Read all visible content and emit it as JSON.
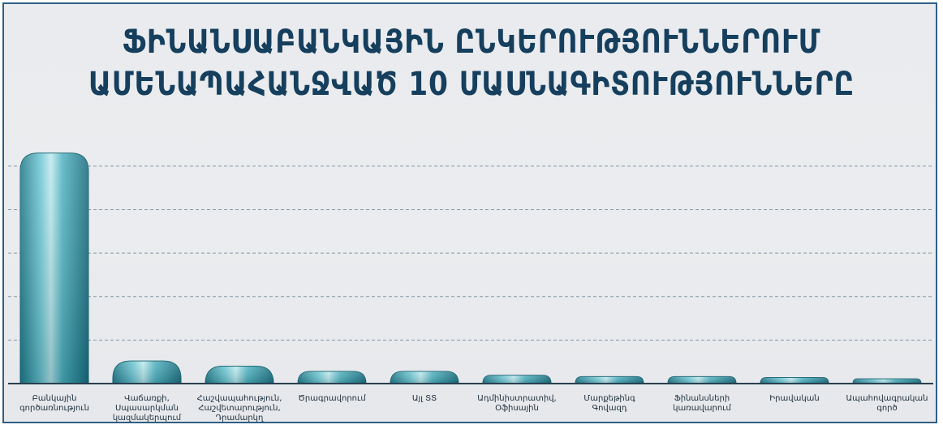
{
  "chart_data": {
    "type": "bar",
    "title_lines": [
      "ՖԻՆԱՆՍԱԲԱՆԿԱՅԻՆ ԸՆԿԵՐՈՒԹՅՈՒՆՆԵՐՈՒՄ",
      "ԱՄԵՆԱՊԱՀԱՆՋՎԱԾ 10 ՄԱՍՆԱԳԻՏՈՒԹՅՈՒՆՆԵՐԸ"
    ],
    "categories": [
      [
        "Բանկային",
        "գործառնություն"
      ],
      [
        "Վաճառքի,",
        "Սպասարկման",
        "կազմակերպում"
      ],
      [
        "Հաշվապահություն,",
        "Հաշվետարություն,",
        "Դրամարկղ"
      ],
      [
        "Ծրագրավորում"
      ],
      [
        "Այլ ՏՏ"
      ],
      [
        "Ադմինիստրատիվ,",
        "Օֆիսային"
      ],
      [
        "Մարքեթինգ",
        "Գովազդ"
      ],
      [
        "Ֆինանսների",
        "կառավարում"
      ],
      [
        "Իրավական"
      ],
      [
        "Ապահովագրական",
        "գործ"
      ]
    ],
    "values": [
      53,
      5.2,
      4,
      2.8,
      2.8,
      1.9,
      1.6,
      1.6,
      1.4,
      1.1
    ],
    "ylim": [
      0,
      55
    ],
    "grid": true,
    "gridlines": [
      10,
      20,
      30,
      40,
      50
    ],
    "bar_color": "#2a95a6",
    "bar_highlight": "#bfe9ee",
    "title_color": "#163f5e"
  }
}
